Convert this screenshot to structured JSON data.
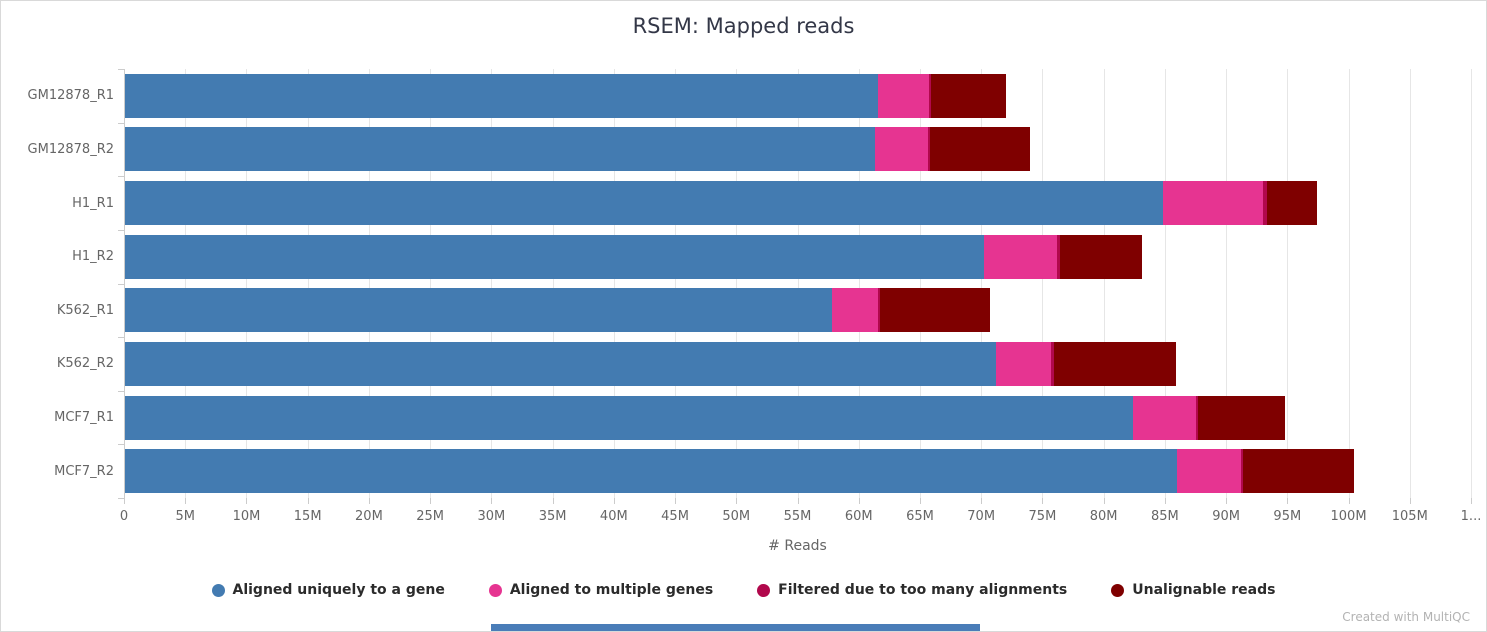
{
  "page": {
    "title": "RSEM: Mapped reads",
    "credit": "Created with MultiQC"
  },
  "chart_data": {
    "type": "bar",
    "orientation": "horizontal",
    "stacked": true,
    "title": "RSEM: Mapped reads",
    "xlabel": "# Reads",
    "value_unit": "millions of reads",
    "x_max": 110,
    "x_tick_step": 5,
    "x_tick_labels": [
      "0",
      "5M",
      "10M",
      "15M",
      "20M",
      "25M",
      "30M",
      "35M",
      "40M",
      "45M",
      "50M",
      "55M",
      "60M",
      "65M",
      "70M",
      "75M",
      "80M",
      "85M",
      "90M",
      "95M",
      "100M",
      "105M",
      "1..."
    ],
    "grid": true,
    "legend_position": "bottom",
    "categories": [
      "GM12878_R1",
      "GM12878_R2",
      "H1_R1",
      "H1_R2",
      "K562_R1",
      "K562_R2",
      "MCF7_R1",
      "MCF7_R2"
    ],
    "series": [
      {
        "name": "Aligned uniquely to a gene",
        "color": "#437bb1",
        "values": [
          61.5,
          61.3,
          84.8,
          70.2,
          57.8,
          71.2,
          82.4,
          86.0
        ]
      },
      {
        "name": "Aligned to multiple genes",
        "color": "#e63491",
        "values": [
          4.2,
          4.3,
          8.2,
          6.0,
          3.7,
          4.5,
          5.1,
          5.2
        ]
      },
      {
        "name": "Filtered due to too many alignments",
        "color": "#b1084c",
        "values": [
          0.2,
          0.2,
          0.3,
          0.2,
          0.2,
          0.2,
          0.2,
          0.2
        ]
      },
      {
        "name": "Unalignable reads",
        "color": "#7f0000",
        "values": [
          6.1,
          8.2,
          4.1,
          6.7,
          9.0,
          10.0,
          7.1,
          9.0
        ]
      }
    ]
  },
  "scrollbar": {
    "color": "#4a7db8"
  }
}
